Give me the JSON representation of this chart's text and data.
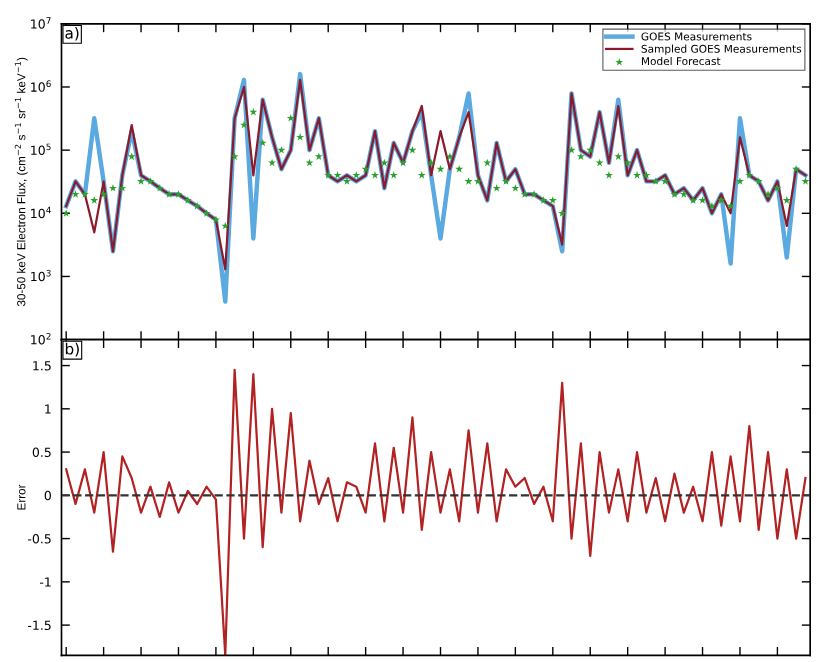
{
  "chart_data": [
    {
      "type": "line",
      "ylabel": "30-50 keV Electron Flux, (cm$^{−2}$ s$^{−1}$ sr$^{−1}$ keV$^{−1}$)",
      "annotations": [
        "a)"
      ],
      "log": true,
      "legend": "top right",
      "tick_labels": "y",
      "ylim": [
        100,
        10000000
      ],
      "yticks": [
        {
          "value": 100,
          "label": "10$^{2}$"
        },
        {
          "value": 1000,
          "label": "10$^{3}$"
        },
        {
          "value": 10000,
          "label": "10$^{4}$"
        },
        {
          "value": 100000,
          "label": "10$^{5}$"
        },
        {
          "value": 1000000,
          "label": "10$^{6}$"
        },
        {
          "value": 10000000,
          "label": "10$^{7}$"
        }
      ],
      "categories": [
        null,
        null,
        null,
        null,
        null,
        null,
        null,
        null,
        null,
        null,
        null,
        null,
        null,
        null,
        null,
        null,
        null,
        null,
        null,
        null,
        null,
        null,
        null,
        null,
        null,
        null,
        null,
        null,
        null,
        null,
        null,
        null,
        null,
        null,
        null,
        null,
        null,
        null,
        null,
        null,
        null,
        null,
        null,
        null,
        null,
        null,
        null,
        null,
        null,
        null,
        null,
        null,
        null,
        null,
        null,
        null,
        null,
        null,
        null,
        null,
        null,
        null,
        null,
        null,
        null,
        null,
        null,
        null,
        null,
        null,
        null,
        null,
        null,
        null,
        null,
        null,
        null,
        null,
        null,
        null
      ],
      "series": [
        {
          "name": "GOES Measurements",
          "type": "line",
          "color": "#5aa9e0",
          "values": [
            13000.0,
            32000.0,
            20000.0,
            320000.0,
            32000.0,
            2500.0,
            40000.0,
            200000.0,
            40000.0,
            32000.0,
            25000.0,
            20000.0,
            20000.0,
            16000.0,
            13000.0,
            10000.0,
            7900.0,
            400.0,
            320000.0,
            1300000.0,
            4000.0,
            630000.0,
            160000.0,
            50000.0,
            100000.0,
            1600000.0,
            100000.0,
            320000.0,
            40000.0,
            32000.0,
            40000.0,
            32000.0,
            40000.0,
            200000.0,
            25000.0,
            130000.0,
            63000.0,
            200000.0,
            400000.0,
            40000.0,
            4000.0,
            50000.0,
            160000.0,
            790000.0,
            40000.0,
            16000.0,
            130000.0,
            32000.0,
            50000.0,
            20000.0,
            20000.0,
            16000.0,
            13000.0,
            2500.0,
            790000.0,
            100000.0,
            79000.0,
            400000.0,
            63000.0,
            630000.0,
            40000.0,
            100000.0,
            32000.0,
            32000.0,
            40000.0,
            20000.0,
            25000.0,
            16000.0,
            25000.0,
            10000.0,
            20000.0,
            1600.0,
            320000.0,
            40000.0,
            32000.0,
            16000.0,
            32000.0,
            2000.0,
            50000.0,
            40000.0
          ]
        },
        {
          "name": "Sampled GOES Measurements",
          "type": "line",
          "color": "#8b1a2a",
          "values": [
            13000.0,
            32000.0,
            20000.0,
            5000.0,
            32000.0,
            2500.0,
            40000.0,
            250000.0,
            40000.0,
            32000.0,
            25000.0,
            20000.0,
            20000.0,
            16000.0,
            13000.0,
            10000.0,
            7900.0,
            1300.0,
            320000.0,
            1000000.0,
            40000.0,
            630000.0,
            160000.0,
            50000.0,
            100000.0,
            1300000.0,
            100000.0,
            320000.0,
            40000.0,
            32000.0,
            40000.0,
            32000.0,
            40000.0,
            200000.0,
            25000.0,
            130000.0,
            63000.0,
            200000.0,
            500000.0,
            40000.0,
            200000.0,
            50000.0,
            160000.0,
            400000.0,
            40000.0,
            16000.0,
            130000.0,
            32000.0,
            50000.0,
            20000.0,
            20000.0,
            16000.0,
            13000.0,
            3200.0,
            790000.0,
            100000.0,
            79000.0,
            400000.0,
            63000.0,
            500000.0,
            40000.0,
            100000.0,
            32000.0,
            32000.0,
            40000.0,
            20000.0,
            25000.0,
            16000.0,
            25000.0,
            10000.0,
            20000.0,
            10000.0,
            160000.0,
            40000.0,
            32000.0,
            16000.0,
            32000.0,
            6300.0,
            50000.0,
            40000.0
          ]
        },
        {
          "name": "Model Forecast",
          "type": "scatter",
          "marker": "star",
          "color": "#2ca02c",
          "values": [
            10000.0,
            20000.0,
            20000.0,
            16000.0,
            20000.0,
            25000.0,
            25000.0,
            79000.0,
            32000.0,
            32000.0,
            25000.0,
            20000.0,
            20000.0,
            16000.0,
            13000.0,
            10000.0,
            7900.0,
            6300.0,
            79000.0,
            250000.0,
            400000.0,
            130000.0,
            63000.0,
            100000.0,
            320000.0,
            160000.0,
            63000.0,
            79000.0,
            40000.0,
            40000.0,
            32000.0,
            40000.0,
            50000.0,
            40000.0,
            63000.0,
            40000.0,
            63000.0,
            100000.0,
            40000.0,
            63000.0,
            50000.0,
            79000.0,
            50000.0,
            32000.0,
            32000.0,
            63000.0,
            25000.0,
            32000.0,
            25000.0,
            20000.0,
            20000.0,
            16000.0,
            16000.0,
            10000.0,
            100000.0,
            79000.0,
            100000.0,
            63000.0,
            40000.0,
            79000.0,
            63000.0,
            40000.0,
            40000.0,
            32000.0,
            32000.0,
            20000.0,
            20000.0,
            16000.0,
            16000.0,
            13000.0,
            16000.0,
            13000.0,
            32000.0,
            40000.0,
            32000.0,
            20000.0,
            25000.0,
            16000.0,
            50000.0,
            32000.0
          ]
        }
      ]
    },
    {
      "type": "line",
      "ylabel": "Error",
      "annotations": [
        "b)"
      ],
      "tick_labels": "y",
      "ylim": [
        -1.85,
        1.8
      ],
      "yticks": [
        -1.5,
        -1,
        -0.5,
        0,
        0.5,
        1,
        1.5
      ],
      "ref_lines": [
        {
          "axis": "y",
          "value": 0,
          "color": "#333333",
          "line_style": "dashed"
        }
      ],
      "categories": [
        null,
        null,
        null,
        null,
        null,
        null,
        null,
        null,
        null,
        null,
        null,
        null,
        null,
        null,
        null,
        null,
        null,
        null,
        null,
        null,
        null,
        null,
        null,
        null,
        null,
        null,
        null,
        null,
        null,
        null,
        null,
        null,
        null,
        null,
        null,
        null,
        null,
        null,
        null,
        null,
        null,
        null,
        null,
        null,
        null,
        null,
        null,
        null,
        null,
        null,
        null,
        null,
        null,
        null,
        null,
        null,
        null,
        null,
        null,
        null,
        null,
        null,
        null,
        null,
        null,
        null,
        null,
        null,
        null,
        null,
        null,
        null,
        null,
        null,
        null,
        null,
        null,
        null,
        null,
        null
      ],
      "series": [
        {
          "color": "#b22222",
          "values": [
            0.3,
            -0.1,
            0.3,
            -0.2,
            0.5,
            -0.65,
            0.45,
            0.2,
            -0.2,
            0.1,
            -0.25,
            0.15,
            -0.2,
            0.05,
            -0.1,
            0.1,
            -0.05,
            -1.85,
            1.45,
            -0.5,
            1.4,
            -0.6,
            1.0,
            -0.2,
            0.95,
            -0.3,
            0.4,
            -0.1,
            0.2,
            -0.3,
            0.15,
            0.1,
            -0.2,
            0.6,
            -0.3,
            0.55,
            -0.2,
            0.9,
            -0.4,
            0.5,
            -0.2,
            0.3,
            -0.3,
            0.75,
            -0.2,
            0.6,
            -0.3,
            0.3,
            0.1,
            0.2,
            -0.1,
            0.1,
            -0.3,
            1.3,
            -0.5,
            0.6,
            -0.7,
            0.5,
            -0.2,
            0.3,
            -0.3,
            0.5,
            -0.2,
            0.2,
            -0.3,
            0.25,
            -0.2,
            0.1,
            -0.3,
            0.5,
            -0.35,
            0.45,
            -0.3,
            0.8,
            -0.4,
            0.5,
            -0.5,
            0.3,
            -0.5,
            0.2
          ]
        }
      ]
    }
  ]
}
